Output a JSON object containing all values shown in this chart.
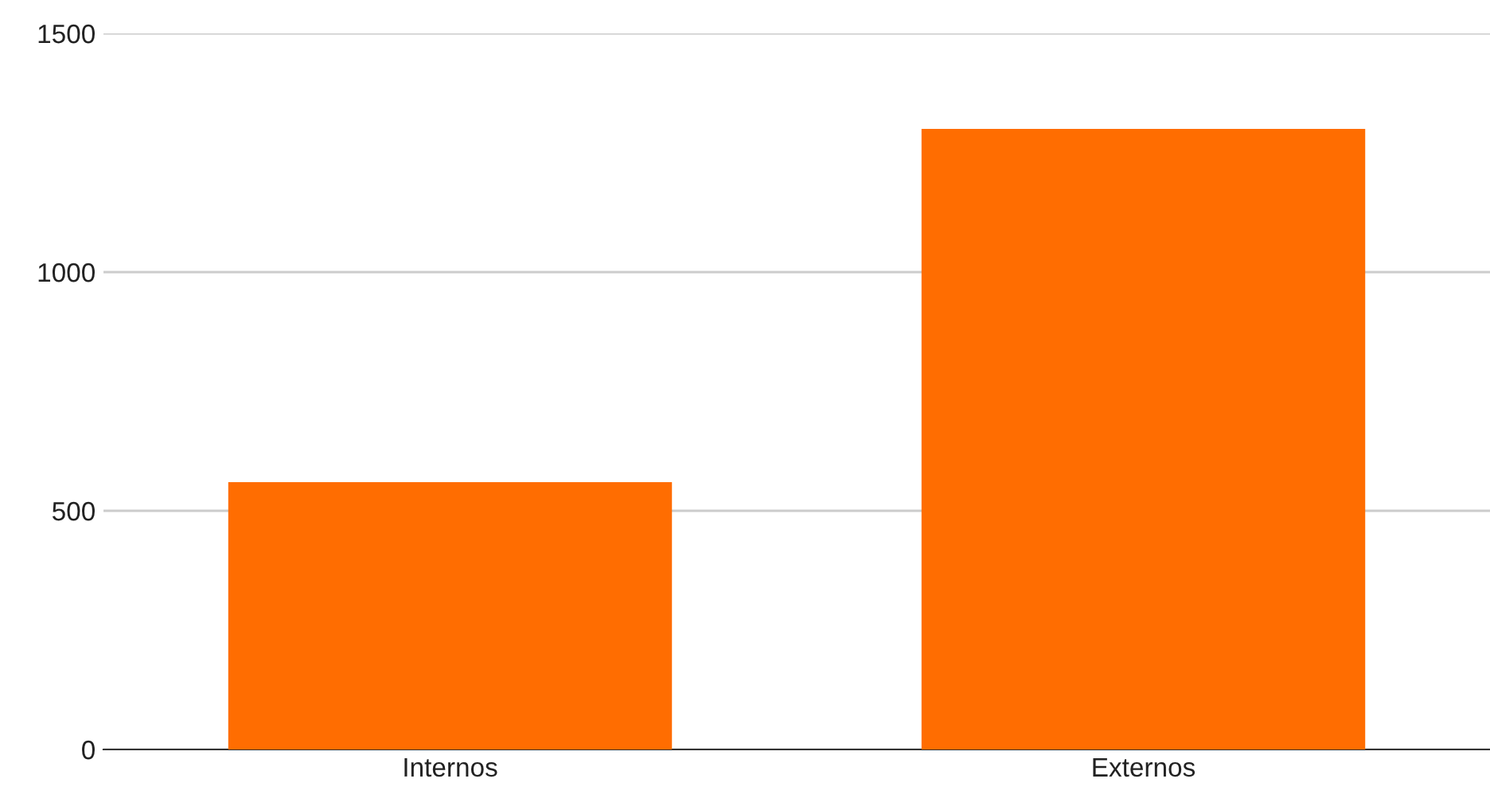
{
  "chart_data": {
    "type": "bar",
    "categories": [
      "Internos",
      "Externos"
    ],
    "values": [
      560,
      1300
    ],
    "color": "#ff6d01",
    "ylim": [
      0,
      1500
    ],
    "yticks": [
      0,
      500,
      1000,
      1500
    ],
    "grid": "y"
  }
}
